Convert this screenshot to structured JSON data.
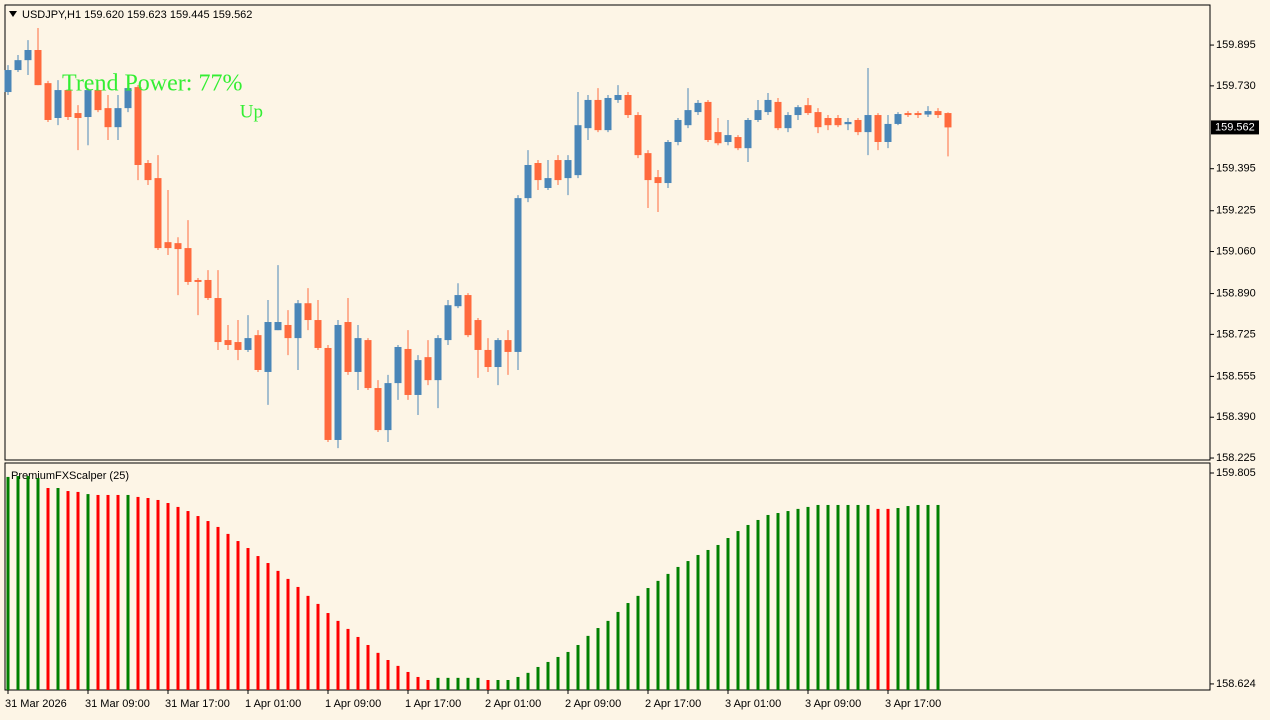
{
  "header": {
    "symbol": "USDJPY,H1",
    "ohlc": [
      "159.620",
      "159.623",
      "159.445",
      "159.562"
    ]
  },
  "chart_data": [
    {
      "type": "candlestick",
      "categories": [
        "31 Mar 2026",
        null,
        null,
        null,
        null,
        null,
        null,
        null,
        "31 Mar 09:00",
        null,
        null,
        null,
        null,
        null,
        null,
        null,
        "31 Mar 17:00",
        null,
        null,
        null,
        null,
        null,
        null,
        null,
        "1 Apr 01:00",
        null,
        null,
        null,
        null,
        null,
        null,
        null,
        "1 Apr 09:00",
        null,
        null,
        null,
        null,
        null,
        null,
        null,
        "1 Apr 17:00",
        null,
        null,
        null,
        null,
        null,
        null,
        null,
        "2 Apr 01:00",
        null,
        null,
        null,
        null,
        null,
        null,
        null,
        "2 Apr 09:00",
        null,
        null,
        null,
        null,
        null,
        null,
        null,
        "2 Apr 17:00",
        null,
        null,
        null,
        null,
        null,
        null,
        null,
        "3 Apr 01:00",
        null,
        null,
        null,
        null,
        null,
        null,
        null,
        "3 Apr 09:00",
        null,
        null,
        null,
        null,
        null,
        null,
        null,
        "3 Apr 17:00",
        null,
        null,
        null,
        null,
        null,
        null
      ],
      "open": [
        159.705,
        159.794,
        159.834,
        159.875,
        159.741,
        159.6,
        159.713,
        159.62,
        159.604,
        159.713,
        159.64,
        159.563,
        159.64,
        159.725,
        159.418,
        159.357,
        159.098,
        159.094,
        159.074,
        158.945,
        158.945,
        158.872,
        158.702,
        158.694,
        158.662,
        158.722,
        158.573,
        158.742,
        158.763,
        158.71,
        158.851,
        158.783,
        158.67,
        158.298,
        158.775,
        158.573,
        158.702,
        158.508,
        158.338,
        158.528,
        158.666,
        158.48,
        158.633,
        158.54,
        158.702,
        158.839,
        158.884,
        158.783,
        158.662,
        158.593,
        158.702,
        158.654,
        159.276,
        159.418,
        159.317,
        159.43,
        159.357,
        159.369,
        159.559,
        159.673,
        159.551,
        159.673,
        159.693,
        159.612,
        159.458,
        159.361,
        159.337,
        159.503,
        159.571,
        159.624,
        159.665,
        159.543,
        159.503,
        159.523,
        159.478,
        159.592,
        159.624,
        159.665,
        159.559,
        159.612,
        159.652,
        159.624,
        159.6,
        159.6,
        159.575,
        159.592,
        159.543,
        159.612,
        159.503,
        159.576,
        159.62,
        159.62,
        159.614,
        159.628,
        159.62
      ],
      "high": [
        159.814,
        159.855,
        159.915,
        159.964,
        159.75,
        159.753,
        159.713,
        159.652,
        159.721,
        159.733,
        159.693,
        159.693,
        159.733,
        159.733,
        159.43,
        159.45,
        159.309,
        159.118,
        159.187,
        158.953,
        158.985,
        158.985,
        158.763,
        158.783,
        158.803,
        158.742,
        158.864,
        159.005,
        158.823,
        158.864,
        158.912,
        158.864,
        158.682,
        158.783,
        158.872,
        158.763,
        158.71,
        158.54,
        158.561,
        158.682,
        158.742,
        158.641,
        158.702,
        158.722,
        158.864,
        158.932,
        158.892,
        158.791,
        158.71,
        158.71,
        158.742,
        159.288,
        159.47,
        159.43,
        159.43,
        159.45,
        159.45,
        159.705,
        159.693,
        159.721,
        159.693,
        159.733,
        159.705,
        159.624,
        159.47,
        159.39,
        159.511,
        159.6,
        159.721,
        159.673,
        159.673,
        159.6,
        159.592,
        159.531,
        159.6,
        159.673,
        159.701,
        159.681,
        159.624,
        159.652,
        159.681,
        159.64,
        159.612,
        159.612,
        159.6,
        159.6,
        159.802,
        159.62,
        159.612,
        159.624,
        159.628,
        159.628,
        159.648,
        159.64,
        159.623
      ],
      "low": [
        159.693,
        159.786,
        159.774,
        159.733,
        159.584,
        159.571,
        159.592,
        159.47,
        159.49,
        159.624,
        159.511,
        159.511,
        159.624,
        159.349,
        159.329,
        159.066,
        159.046,
        158.884,
        158.925,
        158.803,
        158.864,
        158.662,
        158.662,
        158.621,
        158.654,
        158.573,
        158.44,
        158.742,
        158.641,
        158.581,
        158.742,
        158.662,
        158.29,
        158.265,
        158.561,
        158.5,
        158.5,
        158.33,
        158.29,
        158.46,
        158.46,
        158.399,
        158.52,
        158.427,
        158.682,
        158.831,
        158.714,
        158.549,
        158.573,
        158.52,
        158.561,
        158.581,
        159.26,
        159.309,
        159.309,
        159.329,
        159.288,
        159.357,
        159.511,
        159.543,
        159.543,
        159.661,
        159.6,
        159.438,
        159.236,
        159.22,
        159.317,
        159.49,
        159.559,
        159.612,
        159.503,
        159.49,
        159.49,
        159.47,
        159.422,
        159.584,
        159.612,
        159.551,
        159.543,
        159.592,
        159.612,
        159.539,
        159.551,
        159.563,
        159.551,
        159.531,
        159.45,
        159.47,
        159.478,
        159.571,
        159.604,
        159.6,
        159.604,
        159.6,
        159.445
      ],
      "close": [
        159.794,
        159.834,
        159.875,
        159.733,
        159.592,
        159.713,
        159.604,
        159.6,
        159.713,
        159.632,
        159.563,
        159.64,
        159.721,
        159.41,
        159.349,
        159.074,
        159.074,
        159.07,
        158.937,
        158.937,
        158.872,
        158.694,
        158.682,
        158.662,
        158.71,
        158.581,
        158.775,
        158.775,
        158.71,
        158.851,
        158.783,
        158.67,
        158.298,
        158.763,
        158.573,
        158.71,
        158.508,
        158.338,
        158.528,
        158.674,
        158.48,
        158.621,
        158.54,
        158.71,
        158.843,
        158.884,
        158.722,
        158.662,
        158.593,
        158.702,
        158.654,
        159.276,
        159.41,
        159.349,
        159.357,
        159.349,
        159.43,
        159.571,
        159.673,
        159.551,
        159.681,
        159.693,
        159.612,
        159.45,
        159.349,
        159.337,
        159.503,
        159.592,
        159.632,
        159.661,
        159.511,
        159.498,
        159.531,
        159.478,
        159.592,
        159.632,
        159.673,
        159.559,
        159.612,
        159.644,
        159.62,
        159.563,
        159.571,
        159.571,
        159.584,
        159.543,
        159.612,
        159.503,
        159.576,
        159.616,
        159.612,
        159.612,
        159.628,
        159.612,
        159.562
      ],
      "up_color": "#4a86b8",
      "down_color": "#ff6a3d",
      "ylim": [
        158.217,
        160.057
      ],
      "yticks": [
        159.895,
        {
          "value": 159.73,
          "label": "159.730"
        },
        159.395,
        159.225,
        {
          "value": 159.06,
          "label": "159.060"
        },
        {
          "value": 158.89,
          "label": "158.890"
        },
        158.725,
        158.555,
        {
          "value": 158.39,
          "label": "158.390"
        },
        158.225
      ],
      "last_price": 159.562,
      "annotations": {
        "trend_power": "Trend Power: 77%",
        "direction": "Up"
      },
      "annotation_color": "#33ee33"
    },
    {
      "type": "bar",
      "title": "PremiumFXScalper (25)",
      "values": [
        159.783,
        159.788,
        159.788,
        159.777,
        159.721,
        159.721,
        159.704,
        159.699,
        159.687,
        159.682,
        159.682,
        159.682,
        159.682,
        159.671,
        159.665,
        159.654,
        159.637,
        159.615,
        159.592,
        159.564,
        159.536,
        159.503,
        159.464,
        159.424,
        159.385,
        159.34,
        159.301,
        159.257,
        159.212,
        159.167,
        159.117,
        159.072,
        159.021,
        158.977,
        158.932,
        158.887,
        158.842,
        158.798,
        158.758,
        158.725,
        158.691,
        158.663,
        158.646,
        158.658,
        158.658,
        158.658,
        158.658,
        158.658,
        158.646,
        158.646,
        158.646,
        158.663,
        158.686,
        158.719,
        158.747,
        158.775,
        158.803,
        158.842,
        158.893,
        158.937,
        158.977,
        159.027,
        159.077,
        159.117,
        159.161,
        159.201,
        159.24,
        159.279,
        159.312,
        159.346,
        159.374,
        159.402,
        159.441,
        159.48,
        159.514,
        159.542,
        159.57,
        159.581,
        159.592,
        159.604,
        159.615,
        159.626,
        159.626,
        159.626,
        159.626,
        159.626,
        159.626,
        159.604,
        159.604,
        159.609,
        159.62,
        159.626,
        159.626,
        159.626
      ],
      "colors": [
        "#008000",
        "#008000",
        "#008000",
        "#008000",
        "#ff0000",
        "#008000",
        "#ff0000",
        "#ff0000",
        "#008000",
        "#ff0000",
        "#ff0000",
        "#ff0000",
        "#008000",
        "#ff0000",
        "#ff0000",
        "#ff0000",
        "#ff0000",
        "#ff0000",
        "#ff0000",
        "#ff0000",
        "#ff0000",
        "#ff0000",
        "#ff0000",
        "#ff0000",
        "#ff0000",
        "#ff0000",
        "#ff0000",
        "#ff0000",
        "#ff0000",
        "#ff0000",
        "#ff0000",
        "#ff0000",
        "#ff0000",
        "#ff0000",
        "#ff0000",
        "#ff0000",
        "#ff0000",
        "#ff0000",
        "#ff0000",
        "#ff0000",
        "#ff0000",
        "#ff0000",
        "#ff0000",
        "#008000",
        "#008000",
        "#008000",
        "#008000",
        "#008000",
        "#ff0000",
        "#008000",
        "#008000",
        "#008000",
        "#008000",
        "#008000",
        "#008000",
        "#008000",
        "#008000",
        "#008000",
        "#008000",
        "#008000",
        "#008000",
        "#008000",
        "#008000",
        "#008000",
        "#008000",
        "#008000",
        "#008000",
        "#008000",
        "#008000",
        "#008000",
        "#008000",
        "#008000",
        "#008000",
        "#008000",
        "#008000",
        "#008000",
        "#008000",
        "#008000",
        "#008000",
        "#008000",
        "#008000",
        "#008000",
        "#008000",
        "#008000",
        "#008000",
        "#008000",
        "#008000",
        "#ff0000",
        "#ff0000",
        "#008000",
        "#008000",
        "#008000",
        "#008000",
        "#008000"
      ],
      "ylim": [
        158.59,
        159.861
      ],
      "yticks": [
        159.805,
        158.624
      ]
    }
  ]
}
